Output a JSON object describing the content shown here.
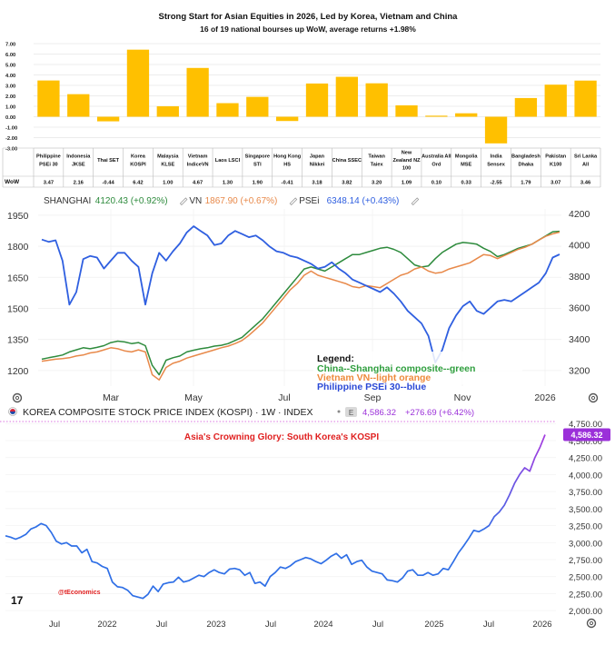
{
  "chart_data": [
    {
      "type": "bar",
      "title": "Strong Start for Asian Equities in 2026, Led by Korea, Vietnam and China",
      "subtitle": "16 of 19 national bourses up WoW, average returns +1.98%",
      "row_label": "WoW",
      "bar_color": "#FFC000",
      "ylim": [
        -3.0,
        7.0
      ],
      "yticks": [
        "7.00",
        "6.00",
        "5.00",
        "4.00",
        "3.00",
        "2.00",
        "1.00",
        "0.00",
        "-1.00",
        "-2.00",
        "-3.00"
      ],
      "ytick_values": [
        7,
        6,
        5,
        4,
        3,
        2,
        1,
        0,
        -1,
        -2,
        -3
      ],
      "categories": [
        [
          "Philippine",
          "PSEi 30"
        ],
        [
          "Indonesia",
          "JKSE"
        ],
        [
          "Thai SET"
        ],
        [
          "Korea",
          "KOSPI"
        ],
        [
          "Malaysia",
          "KLSE"
        ],
        [
          "Vietnam",
          "IndiceVN"
        ],
        [
          "Laos LSCI"
        ],
        [
          "Singapore",
          "STI"
        ],
        [
          "Hong Kong",
          "HS"
        ],
        [
          "Japan",
          "Nikkei"
        ],
        [
          "China SSEC"
        ],
        [
          "Taiwan",
          "Taiex"
        ],
        [
          "New",
          "Zealand NZ",
          "100"
        ],
        [
          "Australia All",
          "Ord"
        ],
        [
          "Mongolia",
          "MSE"
        ],
        [
          "India",
          "Sensex"
        ],
        [
          "Bangladesh",
          "Dhaka"
        ],
        [
          "Pakistan",
          "K100"
        ],
        [
          "Sri Lanka",
          "All"
        ]
      ],
      "values": [
        3.47,
        2.16,
        -0.44,
        6.42,
        1.0,
        4.67,
        1.3,
        1.9,
        -0.41,
        3.18,
        3.82,
        3.2,
        1.09,
        0.1,
        0.33,
        -2.55,
        1.79,
        3.07,
        3.46
      ],
      "value_labels": [
        "3.47",
        "2.16",
        "-0.44",
        "6.42",
        "1.00",
        "4.67",
        "1.30",
        "1.90",
        "-0.41",
        "3.18",
        "3.82",
        "3.20",
        "1.09",
        "0.10",
        "0.33",
        "-2.55",
        "1.79",
        "3.07",
        "3.46"
      ]
    },
    {
      "type": "line",
      "legend_items": [
        {
          "label": "SHANGHAI",
          "value": "4120.43",
          "change": "(+0.92%)",
          "color": "#2e8b3d",
          "axis": "left"
        },
        {
          "label": "VN",
          "value": "1867.90",
          "change": "(+0.67%)",
          "color": "#e8894a",
          "axis": "left"
        },
        {
          "label": "PSEi",
          "value": "6348.14",
          "change": "(+0.43%)",
          "color": "#2f5fe0",
          "axis": "right"
        }
      ],
      "x_ticks": [
        "Mar",
        "May",
        "Jul",
        "Sep",
        "Nov",
        "2026"
      ],
      "left_axis": {
        "ticks": [
          "1950",
          "1800",
          "1650",
          "1500",
          "1350",
          "1200"
        ],
        "values": [
          1950,
          1800,
          1650,
          1500,
          1350,
          1200
        ],
        "range": [
          1125,
          1980
        ]
      },
      "right_axis": {
        "ticks": [
          "4200",
          "4000",
          "3800",
          "3600",
          "3400",
          "3200"
        ],
        "values": [
          4200,
          4000,
          3800,
          3600,
          3400,
          3200
        ],
        "range": [
          3100,
          4230
        ]
      },
      "legend_title": "Legend:",
      "legend_lines": [
        {
          "text": "China--Shanghai composite--green",
          "color": "#2e9e3d"
        },
        {
          "text": "Vietnam VN--light orange",
          "color": "#ee8a3c"
        },
        {
          "text": "Philippine PSEi 30--blue",
          "color": "#2b49d6"
        }
      ],
      "series": [
        {
          "name": "China Shanghai composite (scaled)",
          "values": [
            1255,
            1262,
            1268,
            1275,
            1290,
            1300,
            1310,
            1305,
            1312,
            1320,
            1335,
            1342,
            1338,
            1330,
            1335,
            1320,
            1225,
            1180,
            1250,
            1262,
            1270,
            1290,
            1298,
            1305,
            1310,
            1318,
            1322,
            1330,
            1345,
            1360,
            1390,
            1420,
            1450,
            1490,
            1530,
            1570,
            1610,
            1650,
            1690,
            1700,
            1690,
            1680,
            1700,
            1720,
            1740,
            1760,
            1760,
            1770,
            1780,
            1790,
            1795,
            1785,
            1770,
            1740,
            1710,
            1700,
            1705,
            1740,
            1770,
            1790,
            1810,
            1818,
            1815,
            1810,
            1790,
            1775,
            1750,
            1760,
            1775,
            1790,
            1800,
            1810,
            1830,
            1850,
            1870,
            1872
          ]
        },
        {
          "name": "Vietnam VN",
          "values": [
            1245,
            1250,
            1255,
            1258,
            1262,
            1270,
            1275,
            1285,
            1290,
            1300,
            1310,
            1305,
            1295,
            1290,
            1300,
            1290,
            1180,
            1155,
            1215,
            1235,
            1245,
            1260,
            1270,
            1280,
            1290,
            1300,
            1310,
            1318,
            1330,
            1345,
            1370,
            1400,
            1430,
            1470,
            1510,
            1550,
            1590,
            1620,
            1660,
            1680,
            1660,
            1650,
            1640,
            1630,
            1620,
            1605,
            1600,
            1610,
            1605,
            1600,
            1620,
            1640,
            1660,
            1670,
            1690,
            1700,
            1680,
            1670,
            1675,
            1690,
            1700,
            1710,
            1720,
            1740,
            1760,
            1755,
            1740,
            1755,
            1770,
            1785,
            1795,
            1810,
            1830,
            1848,
            1860,
            1868
          ]
        },
        {
          "name": "Philippine PSEi 30",
          "values": [
            4035,
            4020,
            4030,
            3900,
            3620,
            3700,
            3910,
            3930,
            3920,
            3850,
            3900,
            3950,
            3950,
            3900,
            3860,
            3620,
            3820,
            3950,
            3900,
            3960,
            4010,
            4080,
            4120,
            4090,
            4060,
            4000,
            4010,
            4060,
            4090,
            4070,
            4050,
            4060,
            4030,
            3990,
            3960,
            3950,
            3930,
            3920,
            3900,
            3880,
            3850,
            3860,
            3890,
            3850,
            3820,
            3780,
            3760,
            3740,
            3720,
            3700,
            3730,
            3690,
            3640,
            3580,
            3540,
            3500,
            3420,
            3250,
            3330,
            3470,
            3550,
            3610,
            3640,
            3580,
            3560,
            3600,
            3640,
            3650,
            3640,
            3670,
            3700,
            3730,
            3760,
            3820,
            3920,
            3940
          ]
        }
      ]
    },
    {
      "type": "line",
      "header": "KOREA COMPOSITE STOCK PRICE INDEX (KOSPI) · 1W · INDEX",
      "header_badge": "E",
      "last_value": "4,586.32",
      "last_change": "+276.69 (+6.42%)",
      "price_tag": "4,586.32",
      "title": "Asia's Crowning Glory: South Korea's KOSPI",
      "watermark": "@tEconomics",
      "logo_text": "17",
      "x_ticks": [
        "Jul",
        "2022",
        "Jul",
        "2023",
        "Jul",
        "2024",
        "Jul",
        "2025",
        "Jul",
        "2026"
      ],
      "y_ticks": [
        "4,750.00",
        "4,500.00",
        "4,250.00",
        "4,000.00",
        "3,750.00",
        "3,500.00",
        "3,250.00",
        "3,000.00",
        "2,750.00",
        "2,500.00",
        "2,250.00",
        "2,000.00"
      ],
      "y_tick_values": [
        4750,
        4500,
        4250,
        4000,
        3750,
        3500,
        3250,
        3000,
        2750,
        2500,
        2250,
        2000
      ],
      "ylim": [
        1975,
        4780
      ],
      "series": [
        {
          "name": "KOSPI",
          "values": [
            3100,
            3080,
            3050,
            3080,
            3120,
            3200,
            3230,
            3280,
            3250,
            3150,
            3020,
            2980,
            3000,
            2950,
            2950,
            2850,
            2900,
            2720,
            2700,
            2650,
            2620,
            2420,
            2350,
            2340,
            2300,
            2220,
            2200,
            2180,
            2240,
            2360,
            2280,
            2390,
            2410,
            2420,
            2490,
            2420,
            2440,
            2480,
            2520,
            2500,
            2560,
            2600,
            2560,
            2540,
            2610,
            2620,
            2600,
            2520,
            2560,
            2400,
            2420,
            2360,
            2500,
            2560,
            2640,
            2620,
            2660,
            2720,
            2750,
            2780,
            2760,
            2720,
            2690,
            2740,
            2800,
            2840,
            2770,
            2820,
            2680,
            2720,
            2740,
            2640,
            2580,
            2560,
            2540,
            2450,
            2440,
            2420,
            2480,
            2580,
            2600,
            2520,
            2520,
            2560,
            2520,
            2540,
            2620,
            2600,
            2720,
            2850,
            2950,
            3060,
            3180,
            3160,
            3200,
            3250,
            3380,
            3450,
            3550,
            3700,
            3870,
            4000,
            4100,
            4050,
            4250,
            4400,
            4586
          ]
        }
      ]
    }
  ]
}
